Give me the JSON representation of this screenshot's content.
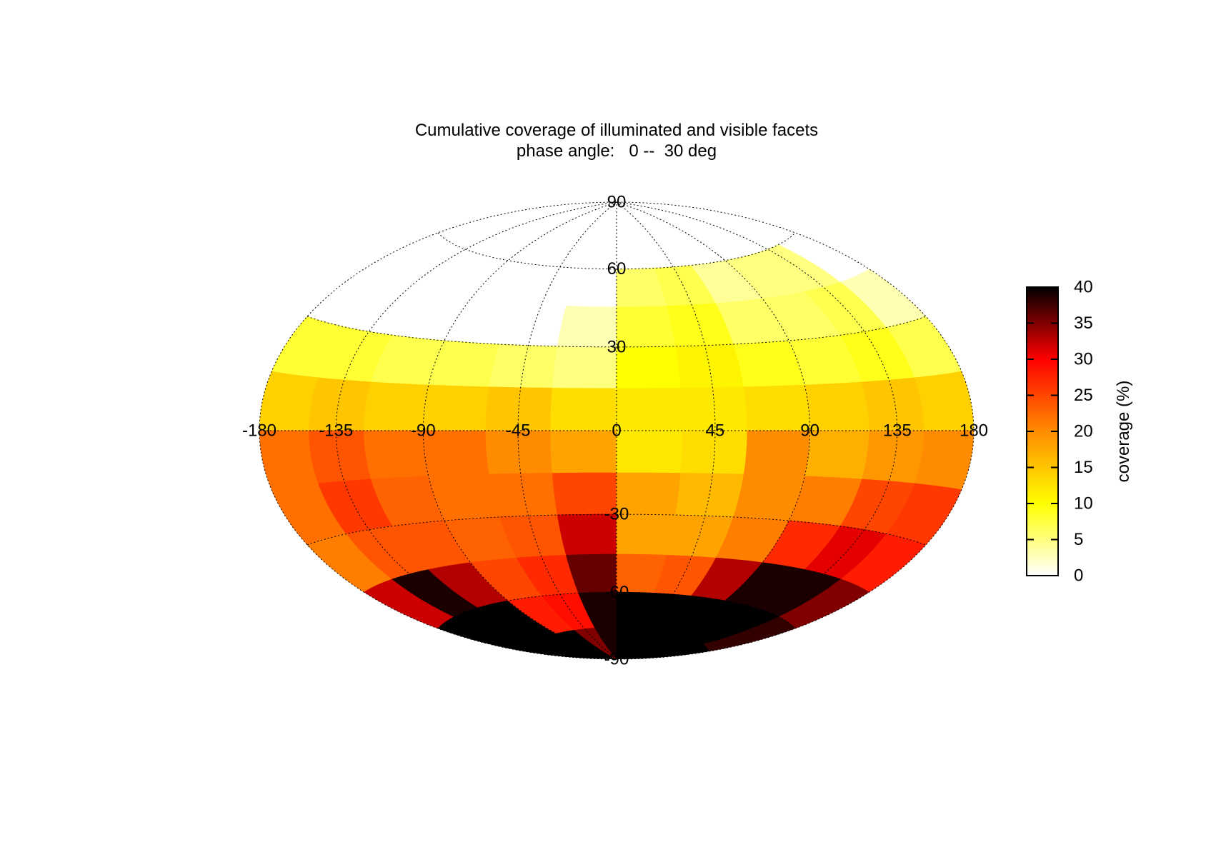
{
  "chart_data": {
    "type": "heatmap",
    "projection": "hammer-aitoff",
    "title": "Cumulative coverage of illuminated and visible facets",
    "subtitle": "phase angle:   0 --  30 deg",
    "xlabel": "",
    "ylabel": "",
    "xlim": [
      -180,
      180
    ],
    "ylim": [
      -90,
      90
    ],
    "x_ticks": [
      "-180",
      "-135",
      "-90",
      "-45",
      "0",
      "45",
      "90",
      "135",
      "180"
    ],
    "y_ticks": [
      "90",
      "60",
      "30",
      "-30",
      "-60",
      "-90"
    ],
    "grid": true,
    "colorbar": {
      "label": "coverage (%)",
      "range": [
        0,
        40
      ],
      "ticks": [
        "0",
        "5",
        "10",
        "15",
        "20",
        "25",
        "30",
        "35",
        "40"
      ],
      "colormap": "hot-reversed",
      "colors": [
        "#ffffff",
        "#ffff00",
        "#ff8c00",
        "#ff0000",
        "#000000"
      ]
    },
    "lon_bins": [
      -180,
      -150,
      -120,
      -90,
      -60,
      -30,
      0,
      30,
      60,
      90,
      120,
      150,
      180
    ],
    "lat_bins": [
      90,
      75,
      60,
      45,
      30,
      15,
      0,
      -15,
      -30,
      -45,
      -60,
      -75,
      -90
    ],
    "values": [
      [
        0,
        0,
        0,
        0,
        0,
        0,
        0,
        0,
        0,
        0,
        0,
        0
      ],
      [
        0,
        0,
        0,
        0,
        0,
        0,
        0,
        0,
        0,
        0,
        0,
        0
      ],
      [
        0,
        0,
        0,
        0,
        0,
        0,
        6,
        7,
        4,
        5,
        5,
        0
      ],
      [
        0,
        0,
        0,
        0,
        0,
        3,
        8,
        9,
        6,
        6,
        7,
        3
      ],
      [
        8,
        8,
        7,
        7,
        6,
        5,
        10,
        11,
        9,
        8,
        9,
        7
      ],
      [
        14,
        15,
        14,
        14,
        15,
        13,
        12,
        12,
        13,
        14,
        15,
        14
      ],
      [
        22,
        24,
        22,
        22,
        20,
        18,
        12,
        13,
        20,
        17,
        19,
        20
      ],
      [
        22,
        26,
        23,
        22,
        22,
        25,
        18,
        16,
        20,
        21,
        25,
        26
      ],
      [
        21,
        24,
        24,
        23,
        24,
        32,
        18,
        18,
        21,
        27,
        31,
        28
      ],
      [
        32,
        39,
        33,
        25,
        27,
        36,
        23,
        24,
        33,
        39,
        39,
        35
      ],
      [
        40,
        40,
        40,
        28,
        29,
        39,
        40,
        40,
        40,
        40,
        40,
        38
      ],
      [
        40,
        40,
        40,
        40,
        35,
        39,
        40,
        40,
        40,
        40,
        40,
        40
      ]
    ]
  }
}
